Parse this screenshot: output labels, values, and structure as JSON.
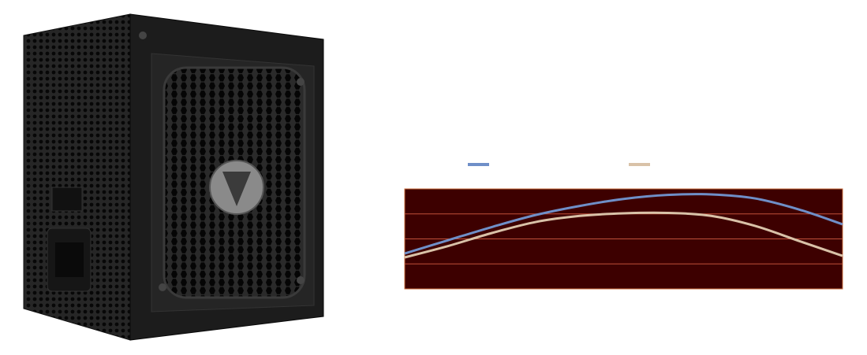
{
  "chart_data": {
    "type": "line",
    "categories": [
      null,
      null,
      null,
      null,
      null,
      null,
      null,
      null,
      null,
      null,
      null
    ],
    "series": [
      {
        "color": "#6f8fc8",
        "values": [
          35.4,
          48.8,
          62,
          74,
          83,
          90,
          94,
          94.5,
          90.5,
          79.5,
          64.6
        ]
      },
      {
        "color": "#d9c2a8",
        "values": [
          31.5,
          43,
          56,
          67,
          73,
          75.6,
          76,
          73,
          63,
          48,
          33
        ]
      }
    ],
    "ylim": [
      0,
      100
    ],
    "yticks": [
      25,
      50,
      75
    ],
    "grid": true
  }
}
